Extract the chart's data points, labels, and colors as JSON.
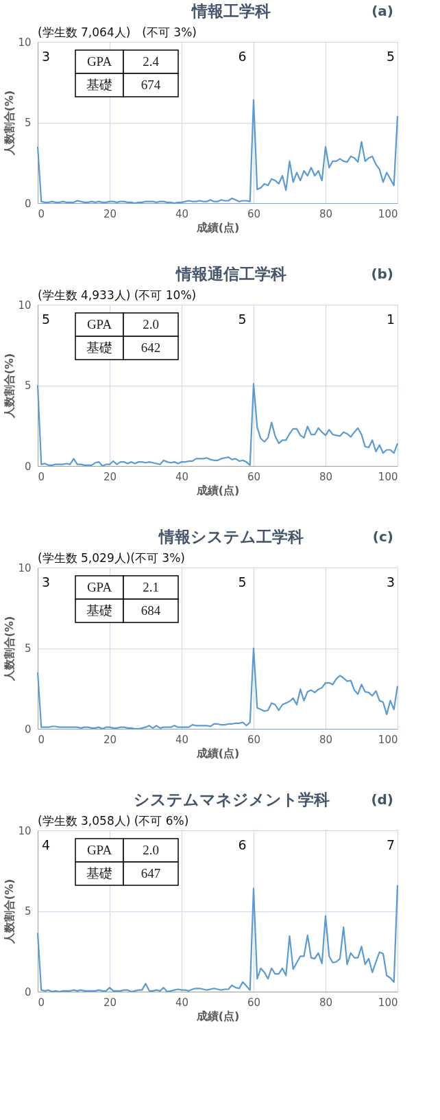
{
  "chart_data": [
    {
      "type": "line",
      "title": "情報工学科",
      "subtitle": "(学生数 7,064人)　(不可 3%)",
      "xlabel": "成績(点)",
      "ylabel": "人数割合(%)",
      "xlim": [
        0,
        100
      ],
      "xticks": [
        0,
        20,
        40,
        60,
        80,
        100
      ],
      "ylim": [
        0,
        10
      ],
      "yticks": [
        0,
        5,
        10
      ],
      "grid": true,
      "marker": "none",
      "line_style": "solid",
      "x": [
        0,
        1,
        2,
        3,
        4,
        5,
        6,
        7,
        8,
        9,
        10,
        11,
        12,
        13,
        14,
        15,
        16,
        17,
        18,
        19,
        20,
        21,
        22,
        23,
        24,
        25,
        26,
        27,
        28,
        29,
        30,
        31,
        32,
        33,
        34,
        35,
        36,
        37,
        38,
        39,
        40,
        41,
        42,
        43,
        44,
        45,
        46,
        47,
        48,
        49,
        50,
        51,
        52,
        53,
        54,
        55,
        56,
        57,
        58,
        59,
        60,
        61,
        62,
        63,
        64,
        65,
        66,
        67,
        68,
        69,
        70,
        71,
        72,
        73,
        74,
        75,
        76,
        77,
        78,
        79,
        80,
        81,
        82,
        83,
        84,
        85,
        86,
        87,
        88,
        89,
        90,
        91,
        92,
        93,
        94,
        95,
        96,
        97,
        98,
        99,
        100
      ],
      "series": [
        {
          "color": "#5b9bd5",
          "values": [
            3.5,
            0.1,
            0.05,
            0.05,
            0.1,
            0.05,
            0.05,
            0.1,
            0.05,
            0.05,
            0.05,
            0.15,
            0.1,
            0.05,
            0.05,
            0.1,
            0.05,
            0.1,
            0.05,
            0.05,
            0.1,
            0.1,
            0.05,
            0.1,
            0.1,
            0.05,
            0.05,
            0.0,
            0.05,
            0.05,
            0.1,
            0.1,
            0.1,
            0.05,
            0.1,
            0.1,
            0.05,
            0.05,
            0.0,
            0.05,
            0.05,
            0.1,
            0.15,
            0.1,
            0.1,
            0.15,
            0.1,
            0.1,
            0.2,
            0.1,
            0.1,
            0.2,
            0.15,
            0.15,
            0.3,
            0.2,
            0.1,
            0.15,
            0.15,
            0.1,
            6.4,
            0.85,
            0.95,
            1.2,
            1.1,
            1.5,
            1.4,
            1.2,
            1.7,
            0.8,
            2.6,
            1.3,
            1.9,
            1.4,
            2.0,
            1.7,
            2.2,
            1.7,
            2.0,
            1.4,
            3.5,
            2.2,
            2.6,
            2.6,
            2.75,
            2.6,
            2.55,
            2.9,
            2.8,
            2.55,
            3.8,
            2.6,
            2.8,
            2.9,
            2.4,
            2.1,
            1.3,
            1.9,
            1.5,
            1.1,
            5.4
          ]
        }
      ],
      "annotations": [
        "(a)",
        "GPA",
        "2.4",
        "基礎",
        "674",
        "3",
        "6",
        "5"
      ]
    },
    {
      "type": "line",
      "title": "情報通信工学科",
      "subtitle": "(学生数 4,933人) (不可 10%)",
      "xlabel": "成績(点)",
      "ylabel": "人数割合(%)",
      "xlim": [
        0,
        100
      ],
      "xticks": [
        0,
        20,
        40,
        60,
        80,
        100
      ],
      "ylim": [
        0,
        10
      ],
      "yticks": [
        0,
        5,
        10
      ],
      "grid": true,
      "marker": "none",
      "line_style": "solid",
      "x": [
        0,
        1,
        2,
        3,
        4,
        5,
        6,
        7,
        8,
        9,
        10,
        11,
        12,
        13,
        14,
        15,
        16,
        17,
        18,
        19,
        20,
        21,
        22,
        23,
        24,
        25,
        26,
        27,
        28,
        29,
        30,
        31,
        32,
        33,
        34,
        35,
        36,
        37,
        38,
        39,
        40,
        41,
        42,
        43,
        44,
        45,
        46,
        47,
        48,
        49,
        50,
        51,
        52,
        53,
        54,
        55,
        56,
        57,
        58,
        59,
        60,
        61,
        62,
        63,
        64,
        65,
        66,
        67,
        68,
        69,
        70,
        71,
        72,
        73,
        74,
        75,
        76,
        77,
        78,
        79,
        80,
        81,
        82,
        83,
        84,
        85,
        86,
        87,
        88,
        89,
        90,
        91,
        92,
        93,
        94,
        95,
        96,
        97,
        98,
        99,
        100
      ],
      "series": [
        {
          "color": "#5b9bd5",
          "values": [
            5.0,
            0.1,
            0.15,
            0.05,
            0.05,
            0.1,
            0.1,
            0.1,
            0.15,
            0.1,
            0.45,
            0.1,
            0.1,
            0.05,
            0.05,
            0.05,
            0.2,
            0.25,
            0.0,
            0.1,
            0.1,
            0.3,
            0.1,
            0.25,
            0.25,
            0.15,
            0.25,
            0.15,
            0.25,
            0.25,
            0.2,
            0.25,
            0.2,
            0.15,
            0.1,
            0.35,
            0.25,
            0.2,
            0.25,
            0.15,
            0.25,
            0.25,
            0.3,
            0.3,
            0.45,
            0.45,
            0.45,
            0.5,
            0.4,
            0.35,
            0.35,
            0.45,
            0.5,
            0.55,
            0.4,
            0.45,
            0.3,
            0.35,
            0.25,
            0.05,
            5.1,
            2.4,
            1.7,
            1.5,
            1.75,
            2.7,
            1.85,
            1.4,
            1.6,
            1.6,
            2.0,
            2.3,
            2.3,
            1.9,
            1.75,
            2.45,
            1.95,
            1.95,
            2.35,
            2.1,
            1.9,
            2.25,
            1.95,
            1.9,
            1.85,
            2.1,
            2.0,
            1.8,
            2.1,
            2.35,
            1.95,
            1.2,
            1.15,
            1.6,
            0.9,
            1.3,
            0.8,
            1.0,
            1.0,
            0.8,
            1.4
          ]
        }
      ],
      "annotations": [
        "(b)",
        "GPA",
        "2.0",
        "基礎",
        "642",
        "5",
        "5",
        "1"
      ]
    },
    {
      "type": "line",
      "title": "情報システム工学科",
      "subtitle": "(学生数 5,029人)(不可 3%)",
      "xlabel": "成績(点)",
      "ylabel": "人数割合(%)",
      "xlim": [
        0,
        100
      ],
      "xticks": [
        0,
        20,
        40,
        60,
        80,
        100
      ],
      "ylim": [
        0,
        10
      ],
      "yticks": [
        0,
        5,
        10
      ],
      "grid": true,
      "marker": "none",
      "line_style": "solid",
      "x": [
        0,
        1,
        2,
        3,
        4,
        5,
        6,
        7,
        8,
        9,
        10,
        11,
        12,
        13,
        14,
        15,
        16,
        17,
        18,
        19,
        20,
        21,
        22,
        23,
        24,
        25,
        26,
        27,
        28,
        29,
        30,
        31,
        32,
        33,
        34,
        35,
        36,
        37,
        38,
        39,
        40,
        41,
        42,
        43,
        44,
        45,
        46,
        47,
        48,
        49,
        50,
        51,
        52,
        53,
        54,
        55,
        56,
        57,
        58,
        59,
        60,
        61,
        62,
        63,
        64,
        65,
        66,
        67,
        68,
        69,
        70,
        71,
        72,
        73,
        74,
        75,
        76,
        77,
        78,
        79,
        80,
        81,
        82,
        83,
        84,
        85,
        86,
        87,
        88,
        89,
        90,
        91,
        92,
        93,
        94,
        95,
        96,
        97,
        98,
        99,
        100
      ],
      "series": [
        {
          "color": "#5b9bd5",
          "values": [
            3.5,
            0.1,
            0.1,
            0.1,
            0.15,
            0.15,
            0.1,
            0.1,
            0.1,
            0.1,
            0.1,
            0.1,
            0.05,
            0.1,
            0.1,
            0.05,
            0.05,
            0.1,
            0.0,
            0.1,
            0.1,
            0.05,
            0.05,
            0.1,
            0.1,
            0.05,
            0.05,
            0.0,
            0.0,
            0.05,
            0.1,
            0.2,
            0.05,
            0.2,
            0.05,
            0.1,
            0.1,
            0.1,
            0.2,
            0.1,
            0.1,
            0.1,
            0.1,
            0.25,
            0.2,
            0.2,
            0.2,
            0.2,
            0.15,
            0.3,
            0.3,
            0.25,
            0.25,
            0.3,
            0.3,
            0.35,
            0.35,
            0.4,
            0.2,
            0.4,
            5.0,
            1.3,
            1.2,
            1.1,
            1.15,
            1.6,
            1.5,
            1.15,
            1.5,
            1.6,
            1.7,
            1.9,
            1.5,
            2.45,
            1.75,
            2.3,
            2.4,
            2.25,
            2.45,
            2.55,
            2.85,
            2.85,
            2.75,
            3.1,
            3.3,
            3.15,
            2.95,
            3.0,
            2.4,
            2.15,
            2.75,
            2.3,
            2.25,
            2.05,
            2.35,
            1.75,
            1.65,
            0.9,
            1.75,
            1.2,
            2.65
          ]
        }
      ],
      "annotations": [
        "(c)",
        "GPA",
        "2.1",
        "基礎",
        "684",
        "3",
        "5",
        "3"
      ]
    },
    {
      "type": "line",
      "title": "システムマネジメント学科",
      "subtitle": "(学生数 3,058人) (不可 6%)",
      "xlabel": "成績(点)",
      "ylabel": "人数割合(%)",
      "xlim": [
        0,
        100
      ],
      "xticks": [
        0,
        20,
        40,
        60,
        80,
        100
      ],
      "ylim": [
        0,
        10
      ],
      "yticks": [
        0,
        5,
        10
      ],
      "grid": true,
      "marker": "none",
      "line_style": "solid",
      "x": [
        0,
        1,
        2,
        3,
        4,
        5,
        6,
        7,
        8,
        9,
        10,
        11,
        12,
        13,
        14,
        15,
        16,
        17,
        18,
        19,
        20,
        21,
        22,
        23,
        24,
        25,
        26,
        27,
        28,
        29,
        30,
        31,
        32,
        33,
        34,
        35,
        36,
        37,
        38,
        39,
        40,
        41,
        42,
        43,
        44,
        45,
        46,
        47,
        48,
        49,
        50,
        51,
        52,
        53,
        54,
        55,
        56,
        57,
        58,
        59,
        60,
        61,
        62,
        63,
        64,
        65,
        66,
        67,
        68,
        69,
        70,
        71,
        72,
        73,
        74,
        75,
        76,
        77,
        78,
        79,
        80,
        81,
        82,
        83,
        84,
        85,
        86,
        87,
        88,
        89,
        90,
        91,
        92,
        93,
        94,
        95,
        96,
        97,
        98,
        99,
        100
      ],
      "series": [
        {
          "color": "#5b9bd5",
          "values": [
            3.65,
            0.1,
            0.05,
            0.1,
            0.0,
            0.05,
            0.0,
            0.05,
            0.05,
            0.05,
            0.1,
            0.05,
            0.1,
            0.05,
            0.05,
            0.05,
            0.05,
            0.1,
            0.05,
            0.05,
            0.25,
            0.05,
            0.05,
            0.05,
            0.1,
            0.1,
            0.0,
            0.05,
            0.1,
            0.1,
            0.5,
            0.05,
            0.05,
            0.1,
            0.05,
            0.25,
            0.0,
            0.05,
            0.1,
            0.15,
            0.1,
            0.1,
            0.05,
            0.15,
            0.2,
            0.2,
            0.15,
            0.1,
            0.15,
            0.2,
            0.15,
            0.1,
            0.15,
            0.15,
            0.4,
            0.25,
            0.2,
            0.6,
            0.35,
            0.1,
            6.4,
            0.8,
            1.45,
            1.2,
            0.8,
            1.45,
            1.1,
            1.1,
            1.45,
            1.0,
            3.45,
            1.4,
            1.8,
            2.2,
            2.2,
            3.5,
            2.1,
            2.05,
            2.4,
            1.75,
            4.7,
            2.2,
            1.8,
            1.85,
            2.05,
            4.0,
            1.7,
            2.4,
            2.1,
            2.1,
            2.8,
            1.7,
            2.05,
            1.2,
            1.85,
            2.45,
            2.35,
            1.0,
            0.85,
            0.6,
            6.6
          ]
        }
      ],
      "annotations": [
        "(d)",
        "GPA",
        "2.0",
        "基礎",
        "647",
        "4",
        "6",
        "7"
      ]
    }
  ]
}
